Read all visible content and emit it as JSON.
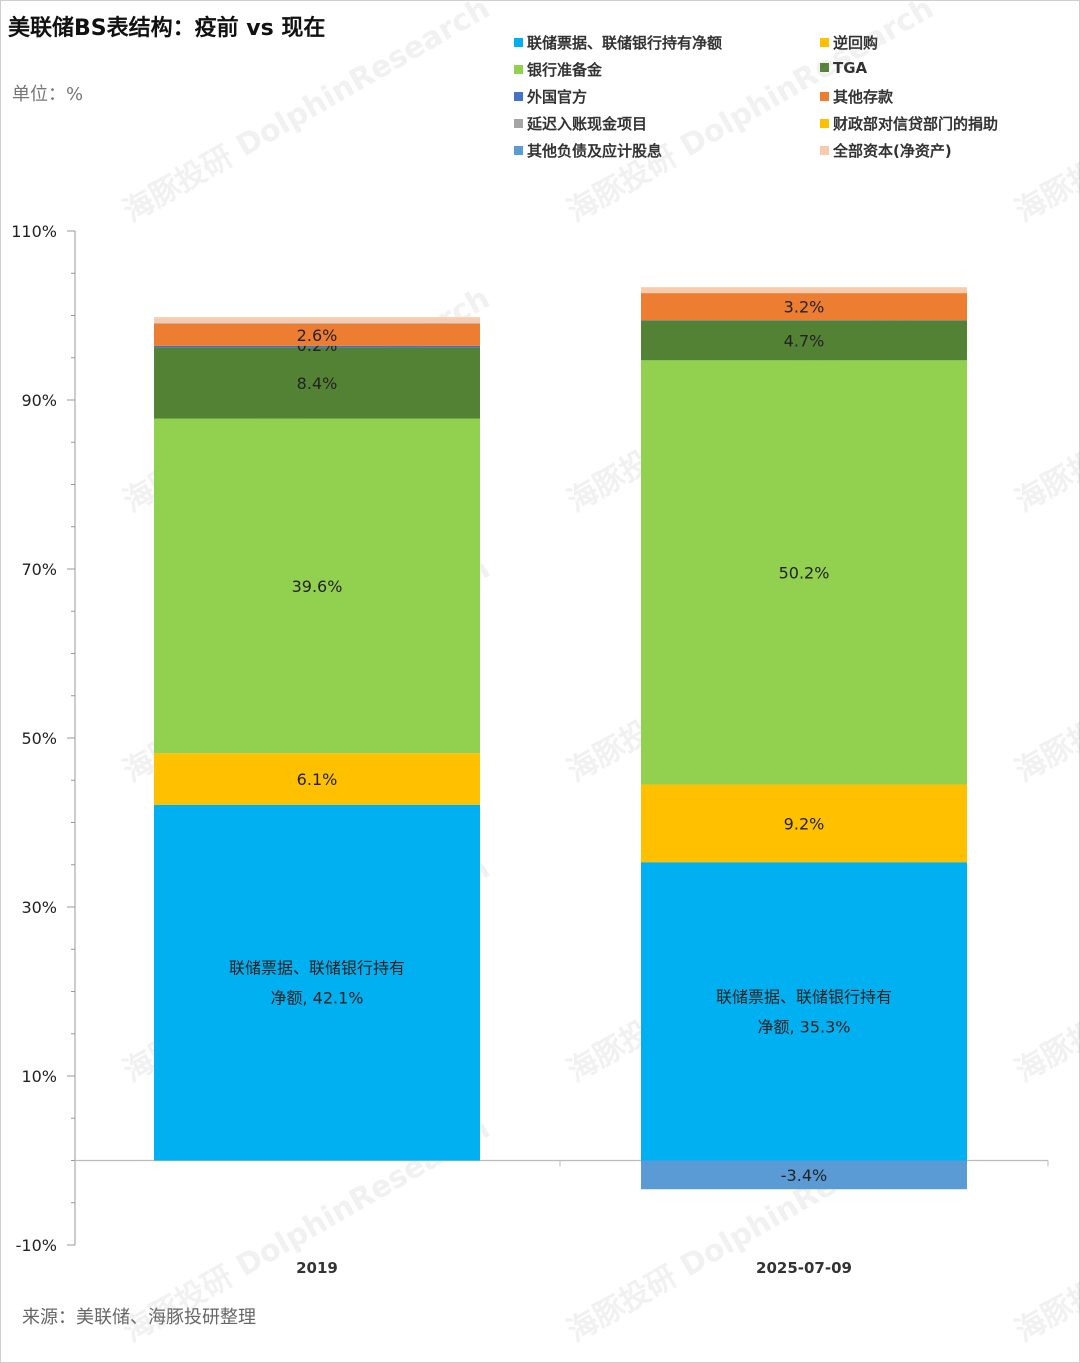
{
  "title": "美联储BS表结构：疫前 vs 现在",
  "unit_label": "单位：%",
  "source_label": "来源：美联储、海豚投研整理",
  "watermark": {
    "line1": "海豚投研",
    "line2": "DolphinResearch"
  },
  "legend": [
    {
      "label": "联储票据、联储银行持有净额",
      "color": "#00B0F0"
    },
    {
      "label": "逆回购",
      "color": "#FFC000"
    },
    {
      "label": "银行准备金",
      "color": "#92D050"
    },
    {
      "label": "TGA",
      "color": "#548235"
    },
    {
      "label": "外国官方",
      "color": "#4472C4"
    },
    {
      "label": "其他存款",
      "color": "#ED7D31"
    },
    {
      "label": "延迟入账现金项目",
      "color": "#A5A5A5"
    },
    {
      "label": "财政部对信贷部门的捐助",
      "color": "#FFC000"
    },
    {
      "label": "其他负债及应计股息",
      "color": "#5B9BD5"
    },
    {
      "label": "全部资本(净资产)",
      "color": "#F8CBAD"
    }
  ],
  "chart_data": {
    "type": "bar",
    "stacked": true,
    "categories": [
      "2019",
      "2025-07-09"
    ],
    "ylim": [
      -10,
      110
    ],
    "yticks": [
      "110%",
      "90%",
      "70%",
      "50%",
      "30%",
      "10%",
      "-10%"
    ],
    "ytick_values": [
      110,
      90,
      70,
      50,
      30,
      10,
      -10
    ],
    "series": [
      {
        "name": "联储票据、联储银行持有净额",
        "values": [
          42.1,
          35.3
        ],
        "labels": [
          "联储票据、联储银行持有|净额, 42.1%",
          "联储票据、联储银行持有|净额, 35.3%"
        ]
      },
      {
        "name": "逆回购",
        "values": [
          6.1,
          9.2
        ],
        "labels": [
          "6.1%",
          "9.2%"
        ]
      },
      {
        "name": "银行准备金",
        "values": [
          39.6,
          50.2
        ],
        "labels": [
          "39.6%",
          "50.2%"
        ]
      },
      {
        "name": "TGA",
        "values": [
          8.4,
          4.7
        ],
        "labels": [
          "8.4%",
          "4.7%"
        ]
      },
      {
        "name": "外国官方",
        "values": [
          0.2,
          0.05
        ],
        "labels": [
          "0.2%",
          ""
        ]
      },
      {
        "name": "其他存款",
        "values": [
          2.6,
          3.2
        ],
        "labels": [
          "2.6%",
          "3.2%"
        ]
      },
      {
        "name": "延迟入账现金项目",
        "values": [
          0.1,
          0.0
        ],
        "labels": [
          "",
          ""
        ]
      },
      {
        "name": "财政部对信贷部门的捐助",
        "values": [
          0.0,
          0.0
        ],
        "labels": [
          "",
          ""
        ]
      },
      {
        "name": "其他负债及应计股息",
        "values": [
          0.0,
          -3.4
        ],
        "labels": [
          "",
          "-3.4%"
        ]
      },
      {
        "name": "全部资本(净资产)",
        "values": [
          0.7,
          0.7
        ],
        "labels": [
          "",
          ""
        ]
      }
    ]
  }
}
